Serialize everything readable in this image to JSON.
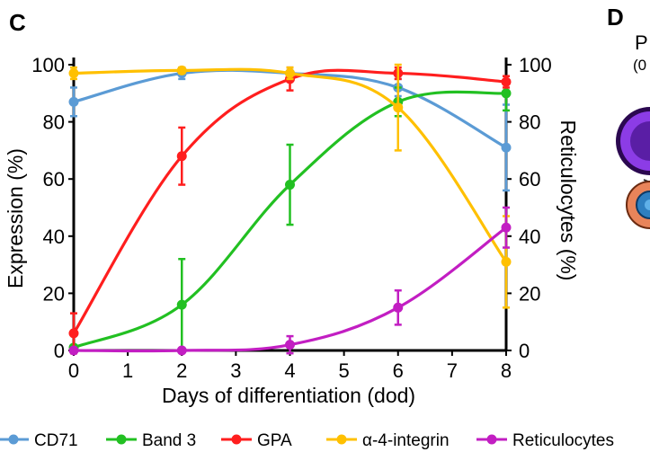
{
  "panels": {
    "left_letter": "C",
    "right_letter": "D",
    "right_snippet_top": "P",
    "right_snippet_bottom": "(0"
  },
  "chart_data": {
    "type": "line",
    "x": [
      0,
      2,
      4,
      6,
      8
    ],
    "xlabel": "Days of differentiation (dod)",
    "ylabel": "Expression (%)",
    "y2label": "Reticulocytes (%)",
    "xlim": [
      0,
      8
    ],
    "ylim": [
      0,
      100
    ],
    "y2lim": [
      0,
      100
    ],
    "xticks": [
      "0",
      "1",
      "2",
      "3",
      "4",
      "5",
      "6",
      "7",
      "8"
    ],
    "yticks": [
      "0",
      "20",
      "40",
      "60",
      "80",
      "100"
    ],
    "y2ticks": [
      "0",
      "20",
      "40",
      "60",
      "80",
      "100"
    ],
    "grid": false,
    "legend_position": "bottom",
    "series": [
      {
        "name": "CD71",
        "color": "#5b9bd5",
        "axis": "left",
        "values": [
          87,
          97,
          97,
          92,
          71
        ],
        "errors": [
          5,
          2,
          2,
          3,
          15
        ]
      },
      {
        "name": "Band 3",
        "color": "#22c022",
        "axis": "left",
        "values": [
          1,
          16,
          58,
          87,
          90
        ],
        "errors": [
          0,
          16,
          14,
          5,
          6
        ]
      },
      {
        "name": "GPA",
        "color": "#ff1e1e",
        "axis": "left",
        "values": [
          6,
          68,
          95,
          97,
          94
        ],
        "errors": [
          7,
          10,
          4,
          2,
          2
        ]
      },
      {
        "name": "α-4-integrin",
        "color": "#ffc000",
        "axis": "left",
        "values": [
          97,
          98,
          97,
          85,
          31
        ],
        "errors": [
          2,
          1,
          2,
          15,
          16
        ]
      },
      {
        "name": "Reticulocytes",
        "color": "#c21ec2",
        "axis": "right",
        "values": [
          0,
          0,
          2,
          15,
          43
        ],
        "errors": [
          0,
          0,
          3,
          6,
          7
        ]
      }
    ]
  }
}
